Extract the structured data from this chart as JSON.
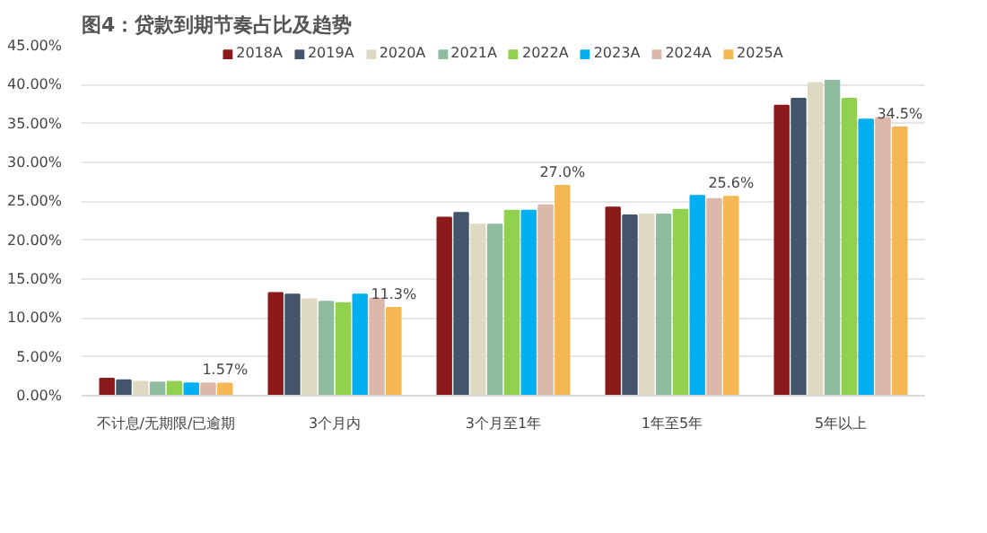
{
  "chart_data": {
    "type": "bar",
    "title": "图4：贷款到期节奏占比及趋势",
    "categories": [
      "不计息/无期限/已逾期",
      "3个月内",
      "3个月至1年",
      "1年至5年",
      "5年以上"
    ],
    "series": [
      {
        "name": "2018A",
        "color": "#8b1a1a",
        "values": [
          2.2,
          13.2,
          22.9,
          24.2,
          37.3
        ]
      },
      {
        "name": "2019A",
        "color": "#44546a",
        "values": [
          2.0,
          13.0,
          23.5,
          23.2,
          38.2
        ]
      },
      {
        "name": "2020A",
        "color": "#ddd9c3",
        "values": [
          1.8,
          12.4,
          22.0,
          23.3,
          40.2
        ]
      },
      {
        "name": "2021A",
        "color": "#8fbc9f",
        "values": [
          1.7,
          12.1,
          22.0,
          23.3,
          40.5
        ]
      },
      {
        "name": "2022A",
        "color": "#92d050",
        "values": [
          1.8,
          11.9,
          23.8,
          23.9,
          38.2
        ]
      },
      {
        "name": "2023A",
        "color": "#00b0f0",
        "values": [
          1.6,
          13.0,
          23.8,
          25.7,
          35.5
        ]
      },
      {
        "name": "2024A",
        "color": "#dcb8aa",
        "values": [
          1.6,
          12.5,
          24.5,
          25.3,
          35.7
        ]
      },
      {
        "name": "2025A",
        "color": "#f4b754",
        "values": [
          1.57,
          11.3,
          27.0,
          25.6,
          34.5
        ],
        "value_labels": [
          "1.57%",
          "11.3%",
          "27.0%",
          "25.6%",
          "34.5%"
        ]
      }
    ],
    "ylim": [
      0,
      45
    ],
    "yticks": [
      {
        "value": 0,
        "label": "0.00%"
      },
      {
        "value": 5,
        "label": "5.00%"
      },
      {
        "value": 10,
        "label": "10.00%"
      },
      {
        "value": 15,
        "label": "15.00%"
      },
      {
        "value": 20,
        "label": "20.00%"
      },
      {
        "value": 25,
        "label": "25.00%"
      },
      {
        "value": 30,
        "label": "30.00%"
      },
      {
        "value": 35,
        "label": "35.00%"
      },
      {
        "value": 40,
        "label": "40.00%"
      },
      {
        "value": 45,
        "label": "45.00%"
      }
    ],
    "grid": "y",
    "legend": "top"
  }
}
